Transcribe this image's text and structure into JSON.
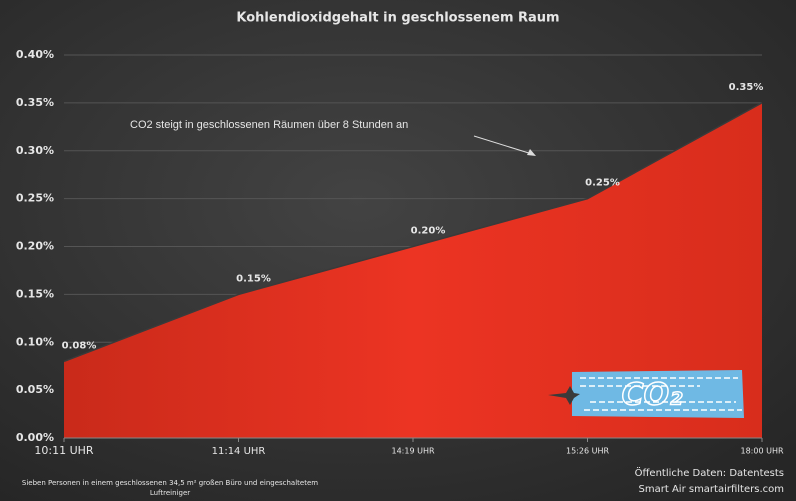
{
  "chart_data": {
    "type": "area",
    "title": "Kohlendioxidgehalt in geschlossenem Raum",
    "annotation": "CO2 steigt in geschlossenen Räumen über 8 Stunden an",
    "banner_text": "CO₂",
    "footnote": [
      "Sieben Personen in einem geschlossenen 34,5 m² großen Büro und eingeschaltetem",
      "Luftreiniger"
    ],
    "source": [
      "Öffentliche Daten: Datentests",
      "Smart Air smartairfilters.com"
    ],
    "categories": [
      "10:11 UHR",
      "11:14 UHR",
      "14:19 UHR",
      "15:26 UHR",
      "18:00 UHR"
    ],
    "values": [
      0.08,
      0.15,
      0.2,
      0.25,
      0.35
    ],
    "value_labels": [
      "0.08%",
      "0.15%",
      "0.20%",
      "0.25%",
      "0.35%"
    ],
    "color": "#e8321f",
    "ylim": [
      0,
      0.4
    ],
    "yticks": [
      {
        "value": 0,
        "label": "0.00%"
      },
      {
        "value": 0.05,
        "label": "0.05%"
      },
      {
        "value": 0.1,
        "label": "0.10%"
      },
      {
        "value": 0.15,
        "label": "0.15%"
      },
      {
        "value": 0.2,
        "label": "0.20%"
      },
      {
        "value": 0.25,
        "label": "0.25%"
      },
      {
        "value": 0.3,
        "label": "0.30%"
      },
      {
        "value": 0.35,
        "label": "0.35%"
      },
      {
        "value": 0.4,
        "label": "0.40%"
      }
    ],
    "grid": true
  }
}
